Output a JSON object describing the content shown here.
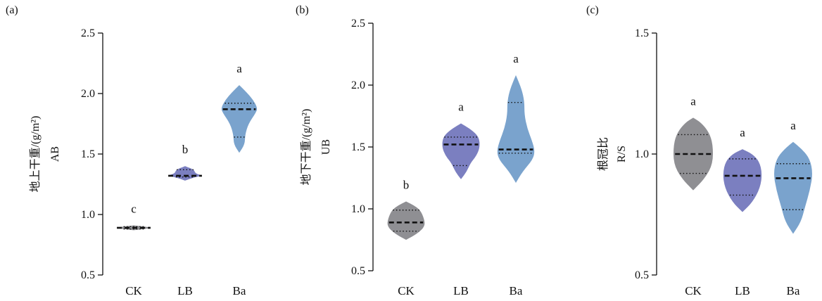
{
  "chart_data": [
    {
      "type": "violin",
      "panel_label": "(a)",
      "ylabel_line1": "地上干重/(g/m²)",
      "ylabel_line2": "AB",
      "ylim": [
        0.5,
        2.5
      ],
      "yticks": [
        "0.5",
        "1.0",
        "1.5",
        "2.0",
        "2.5"
      ],
      "categories": [
        "CK",
        "LB",
        "Ba"
      ],
      "colors": [
        "#8f8f93",
        "#7b7fc0",
        "#7aa3cd"
      ],
      "violins": [
        {
          "category": "CK",
          "min": 0.87,
          "max": 0.91,
          "q1": 0.88,
          "median": 0.89,
          "q3": 0.9,
          "letter": "c",
          "profile": [
            [
              0.87,
              0.0
            ],
            [
              0.88,
              0.6
            ],
            [
              0.89,
              1.0
            ],
            [
              0.9,
              0.6
            ],
            [
              0.91,
              0.0
            ]
          ]
        },
        {
          "category": "LB",
          "min": 1.28,
          "max": 1.4,
          "q1": 1.31,
          "median": 1.32,
          "q3": 1.37,
          "letter": "b",
          "profile": [
            [
              1.28,
              0.0
            ],
            [
              1.31,
              0.55
            ],
            [
              1.32,
              1.0
            ],
            [
              1.34,
              0.55
            ],
            [
              1.37,
              0.5
            ],
            [
              1.4,
              0.0
            ]
          ]
        },
        {
          "category": "Ba",
          "min": 1.51,
          "max": 2.07,
          "q1": 1.64,
          "median": 1.87,
          "q3": 1.92,
          "letter": "a",
          "profile": [
            [
              1.51,
              0.0
            ],
            [
              1.58,
              0.3
            ],
            [
              1.66,
              0.32
            ],
            [
              1.75,
              0.5
            ],
            [
              1.84,
              0.9
            ],
            [
              1.88,
              1.0
            ],
            [
              1.95,
              0.75
            ],
            [
              2.01,
              0.4
            ],
            [
              2.07,
              0.0
            ]
          ]
        }
      ]
    },
    {
      "type": "violin",
      "panel_label": "(b)",
      "ylabel_line1": "地下干重/(g/m²)",
      "ylabel_line2": "UB",
      "ylim": [
        0.5,
        2.5
      ],
      "yticks": [
        "0.5",
        "1.0",
        "1.5",
        "2.0",
        "2.5"
      ],
      "categories": [
        "CK",
        "LB",
        "Ba"
      ],
      "colors": [
        "#8f8f93",
        "#7b7fc0",
        "#7aa3cd"
      ],
      "violins": [
        {
          "category": "CK",
          "min": 0.75,
          "max": 1.06,
          "q1": 0.82,
          "median": 0.89,
          "q3": 0.99,
          "letter": "b",
          "profile": [
            [
              0.75,
              0.0
            ],
            [
              0.8,
              0.6
            ],
            [
              0.86,
              1.0
            ],
            [
              0.92,
              0.95
            ],
            [
              0.99,
              0.75
            ],
            [
              1.03,
              0.4
            ],
            [
              1.06,
              0.0
            ]
          ]
        },
        {
          "category": "LB",
          "min": 1.24,
          "max": 1.69,
          "q1": 1.35,
          "median": 1.52,
          "q3": 1.58,
          "letter": "a",
          "profile": [
            [
              1.24,
              0.0
            ],
            [
              1.3,
              0.3
            ],
            [
              1.37,
              0.5
            ],
            [
              1.43,
              0.82
            ],
            [
              1.5,
              1.0
            ],
            [
              1.58,
              0.95
            ],
            [
              1.64,
              0.55
            ],
            [
              1.69,
              0.0
            ]
          ]
        },
        {
          "category": "Ba",
          "min": 1.21,
          "max": 2.08,
          "q1": 1.45,
          "median": 1.48,
          "q3": 1.86,
          "letter": "a",
          "profile": [
            [
              1.21,
              0.0
            ],
            [
              1.3,
              0.35
            ],
            [
              1.4,
              0.9
            ],
            [
              1.47,
              1.0
            ],
            [
              1.55,
              0.85
            ],
            [
              1.65,
              0.6
            ],
            [
              1.76,
              0.45
            ],
            [
              1.87,
              0.45
            ],
            [
              1.97,
              0.3
            ],
            [
              2.08,
              0.0
            ]
          ]
        }
      ]
    },
    {
      "type": "violin",
      "panel_label": "(c)",
      "ylabel_line1": "根冠比",
      "ylabel_line2": "R/S",
      "ylim": [
        0.5,
        1.5
      ],
      "yticks": [
        "0.5",
        "1.0",
        "1.5"
      ],
      "categories": [
        "CK",
        "LB",
        "Ba"
      ],
      "colors": [
        "#8f8f93",
        "#7b7fc0",
        "#7aa3cd"
      ],
      "violins": [
        {
          "category": "CK",
          "min": 0.85,
          "max": 1.15,
          "q1": 0.92,
          "median": 1.0,
          "q3": 1.08,
          "letter": "a",
          "profile": [
            [
              0.85,
              0.0
            ],
            [
              0.9,
              0.6
            ],
            [
              0.96,
              1.0
            ],
            [
              1.04,
              1.0
            ],
            [
              1.09,
              0.8
            ],
            [
              1.13,
              0.4
            ],
            [
              1.15,
              0.0
            ]
          ]
        },
        {
          "category": "LB",
          "min": 0.76,
          "max": 1.02,
          "q1": 0.83,
          "median": 0.91,
          "q3": 0.98,
          "letter": "a",
          "profile": [
            [
              0.76,
              0.0
            ],
            [
              0.8,
              0.5
            ],
            [
              0.86,
              0.9
            ],
            [
              0.92,
              1.0
            ],
            [
              0.97,
              0.85
            ],
            [
              1.0,
              0.5
            ],
            [
              1.02,
              0.0
            ]
          ]
        },
        {
          "category": "Ba",
          "min": 0.67,
          "max": 1.05,
          "q1": 0.77,
          "median": 0.9,
          "q3": 0.96,
          "letter": "a",
          "profile": [
            [
              0.67,
              0.0
            ],
            [
              0.72,
              0.4
            ],
            [
              0.78,
              0.6
            ],
            [
              0.85,
              0.85
            ],
            [
              0.92,
              1.0
            ],
            [
              0.98,
              0.85
            ],
            [
              1.02,
              0.45
            ],
            [
              1.05,
              0.0
            ]
          ]
        }
      ]
    }
  ]
}
